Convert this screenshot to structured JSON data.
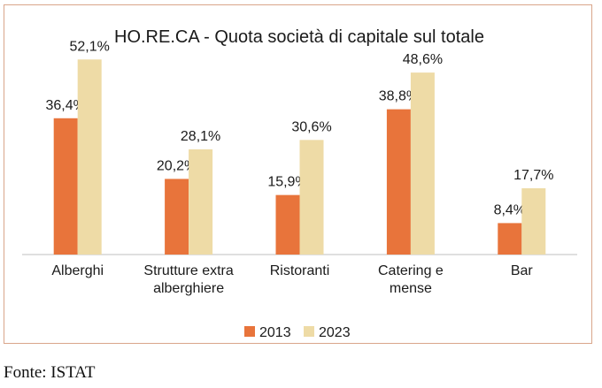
{
  "chart_data": {
    "type": "bar",
    "title": "HO.RE.CA - Quota società di capitale sul totale",
    "categories": [
      [
        "Alberghi"
      ],
      [
        "Strutture extra",
        "alberghiere"
      ],
      [
        "Ristoranti"
      ],
      [
        "Catering e",
        "mense"
      ],
      [
        "Bar"
      ]
    ],
    "series": [
      {
        "name": "2013",
        "color": "#e8743b",
        "values": [
          36.4,
          20.2,
          15.9,
          38.8,
          8.4
        ],
        "labels": [
          "36,4%",
          "20,2%",
          "15,9%",
          "38,8%",
          "8,4%"
        ]
      },
      {
        "name": "2023",
        "color": "#eedba6",
        "values": [
          52.1,
          28.1,
          30.6,
          48.6,
          17.7
        ],
        "labels": [
          "52,1%",
          "28,1%",
          "30,6%",
          "48,6%",
          "17,7%"
        ]
      }
    ],
    "ylim": [
      0,
      55
    ],
    "xlabel": "",
    "ylabel": "",
    "grid": false,
    "legend": "bottom-center"
  },
  "source": "Fonte: ISTAT"
}
